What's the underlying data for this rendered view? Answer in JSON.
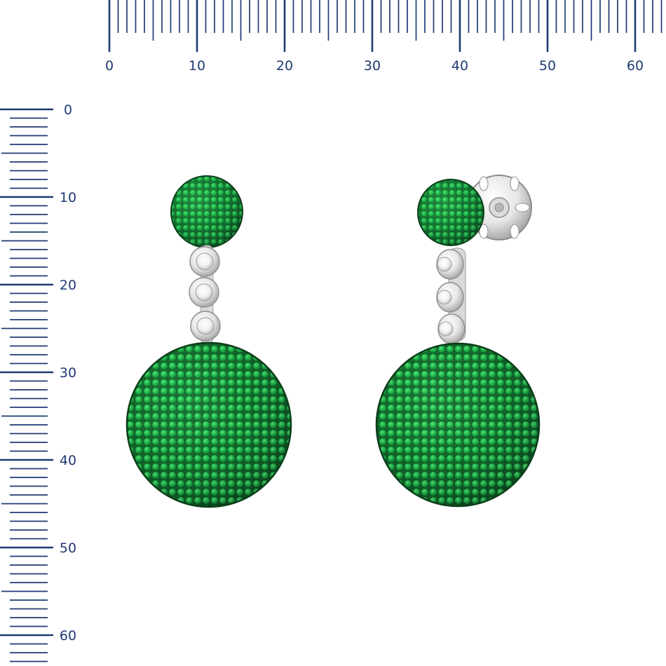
{
  "colors": {
    "ruler": "#1f3a73",
    "gem_light": "#36d35c",
    "gem_mid": "#19a93d",
    "gem_dark": "#0b5a22",
    "metal": "#d7d7d7",
    "background": "#ffffff"
  },
  "rulers": {
    "unit_label": "",
    "horizontal": {
      "labels": [
        "0",
        "10",
        "20",
        "30",
        "40",
        "50",
        "60"
      ]
    },
    "vertical": {
      "labels": [
        "0",
        "10",
        "20",
        "30",
        "40",
        "50",
        "60"
      ]
    }
  },
  "product": {
    "subject": "pair of drop earrings",
    "earrings": [
      {
        "name": "left-earring",
        "top_sphere": "green-pave-sphere",
        "links": 3,
        "bottom_sphere": "green-pave-sphere"
      },
      {
        "name": "right-earring",
        "top_sphere": "green-pave-sphere",
        "links": 3,
        "bottom_sphere": "green-pave-sphere",
        "back": "earring-back-clip"
      }
    ]
  }
}
